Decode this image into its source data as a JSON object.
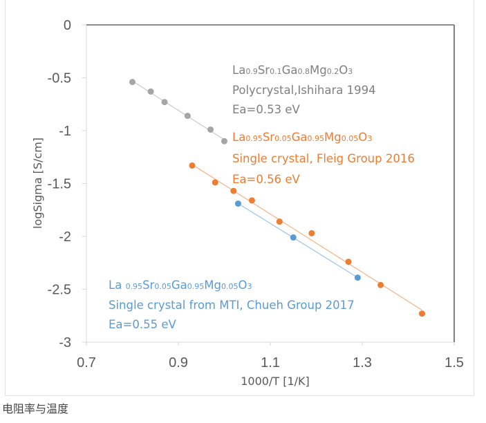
{
  "chart_data": {
    "type": "scatter",
    "title": "",
    "xlabel": "1000/T [1/K]",
    "ylabel": "logSigma [S/cm]",
    "xlim": [
      0.7,
      1.5
    ],
    "ylim": [
      -3,
      0
    ],
    "x_ticks": [
      "0.7",
      "0.9",
      "1.1",
      "1.3",
      "1.5"
    ],
    "y_ticks": [
      "0",
      "-0.5",
      "-1",
      "-1.5",
      "-2",
      "-2.5",
      "-3"
    ],
    "grid": false,
    "series": [
      {
        "name": "La0.9Sr0.1Ga0.8Mg0.2O3 Polycrystal,Ishihara 1994",
        "color": "#a5a5a5",
        "x": [
          0.8,
          0.84,
          0.87,
          0.92,
          0.97,
          1.0
        ],
        "y": [
          -0.54,
          -0.63,
          -0.73,
          -0.86,
          -0.99,
          -1.1
        ],
        "annotation": [
          {
            "parts": [
              [
                "La",
                ""
              ],
              [
                "0.9",
                "s"
              ],
              [
                "Sr",
                ""
              ],
              [
                "0.1",
                "s"
              ],
              [
                "Ga",
                ""
              ],
              [
                "0.8",
                "s"
              ],
              [
                "Mg",
                ""
              ],
              [
                "0.2",
                "s"
              ],
              [
                "O",
                ""
              ],
              [
                "3",
                "s"
              ]
            ]
          },
          {
            "text": "Polycrystal,Ishihara 1994"
          },
          {
            "text": "Ea=0.53 eV"
          }
        ]
      },
      {
        "name": "La0.95Sr0.05Ga0.95Mg0.05O3 Single crystal, Fleig Group 2016",
        "color": "#ed7d31",
        "x": [
          0.93,
          0.98,
          1.02,
          1.06,
          1.12,
          1.19,
          1.27,
          1.34,
          1.43
        ],
        "y": [
          -1.33,
          -1.49,
          -1.57,
          -1.66,
          -1.86,
          -1.97,
          -2.24,
          -2.46,
          -2.73
        ],
        "annotation": [
          {
            "parts": [
              [
                "La",
                ""
              ],
              [
                "0.95",
                "s"
              ],
              [
                "Sr",
                ""
              ],
              [
                "0.05",
                "s"
              ],
              [
                "Ga",
                ""
              ],
              [
                "0.95",
                "s"
              ],
              [
                "Mg",
                ""
              ],
              [
                "0.05",
                "s"
              ],
              [
                "O",
                ""
              ],
              [
                "3",
                "s"
              ]
            ]
          },
          {
            "text": "Single crystal, Fleig Group 2016"
          },
          {
            "text": "Ea=0.56 eV"
          }
        ]
      },
      {
        "name": "La 0.95Sr0.05Ga0.95Mg0.05O3 Single crystal from MTI, Chueh Group 2017",
        "color": "#5b9bd5",
        "x": [
          1.03,
          1.15,
          1.29
        ],
        "y": [
          -1.69,
          -2.01,
          -2.39
        ],
        "annotation": [
          {
            "parts": [
              [
                "La ",
                ""
              ],
              [
                "0.95",
                "s"
              ],
              [
                "Sr",
                ""
              ],
              [
                "0.05",
                "s"
              ],
              [
                "Ga",
                ""
              ],
              [
                "0.95",
                "s"
              ],
              [
                "Mg",
                ""
              ],
              [
                "0.05",
                "s"
              ],
              [
                "O",
                ""
              ],
              [
                "3",
                "s"
              ]
            ]
          },
          {
            "text": "Single crystal from MTI, Chueh Group 2017"
          },
          {
            "text": "Ea=0.55 eV"
          }
        ]
      }
    ]
  },
  "caption": "电阻率与温度"
}
